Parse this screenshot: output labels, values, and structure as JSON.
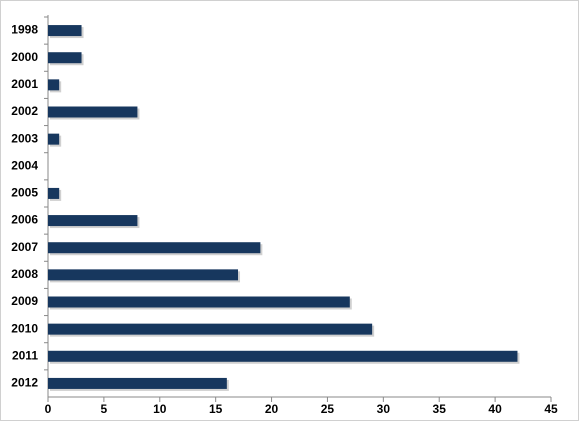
{
  "chart_data": {
    "type": "bar",
    "orientation": "horizontal",
    "categories": [
      "1998",
      "2000",
      "2001",
      "2002",
      "2003",
      "2004",
      "2005",
      "2006",
      "2007",
      "2008",
      "2009",
      "2010",
      "2011",
      "2012"
    ],
    "values": [
      3,
      3,
      1,
      8,
      1,
      0,
      1,
      8,
      19,
      17,
      27,
      29,
      42,
      16
    ],
    "color": "#17375e",
    "xlim": [
      0,
      45
    ],
    "xticks": [
      0,
      5,
      10,
      15,
      20,
      25,
      30,
      35,
      40,
      45
    ],
    "grid": false
  }
}
